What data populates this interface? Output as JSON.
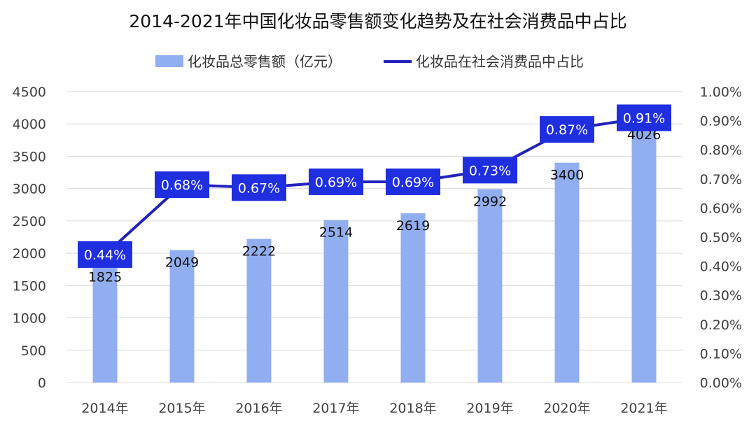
{
  "chart_data": {
    "type": "bar",
    "title": "2014-2021年中国化妆品零售额变化趋势及在社会消费品中占比",
    "categories": [
      "2014年",
      "2015年",
      "2016年",
      "2017年",
      "2018年",
      "2019年",
      "2020年",
      "2021年"
    ],
    "series": [
      {
        "name": "化妆品总零售额（亿元）",
        "type": "bar",
        "axis": "left",
        "color": "#91aef0",
        "values": [
          1825,
          2049,
          2222,
          2514,
          2619,
          2992,
          3400,
          4026
        ],
        "labels": [
          "1825",
          "2049",
          "2222",
          "2514",
          "2619",
          "2992",
          "3400",
          "4026"
        ]
      },
      {
        "name": "化妆品在社会消费品中占比",
        "type": "line",
        "axis": "right",
        "color": "#2222bb",
        "label_bg": "#1f2fe0",
        "values": [
          0.44,
          0.68,
          0.67,
          0.69,
          0.69,
          0.73,
          0.87,
          0.91
        ],
        "labels": [
          "0.44%",
          "0.68%",
          "0.67%",
          "0.69%",
          "0.69%",
          "0.73%",
          "0.87%",
          "0.91%"
        ]
      }
    ],
    "y_left": {
      "min": 0,
      "max": 4500,
      "ticks": [
        "0",
        "500",
        "1000",
        "1500",
        "2000",
        "2500",
        "3000",
        "3500",
        "4000",
        "4500"
      ]
    },
    "y_right": {
      "min": 0,
      "max": 1.0,
      "ticks": [
        "0.00%",
        "0.10%",
        "0.20%",
        "0.30%",
        "0.40%",
        "0.50%",
        "0.60%",
        "0.70%",
        "0.80%",
        "0.90%",
        "1.00%"
      ]
    },
    "grid": true,
    "legend_position": "top-center"
  }
}
